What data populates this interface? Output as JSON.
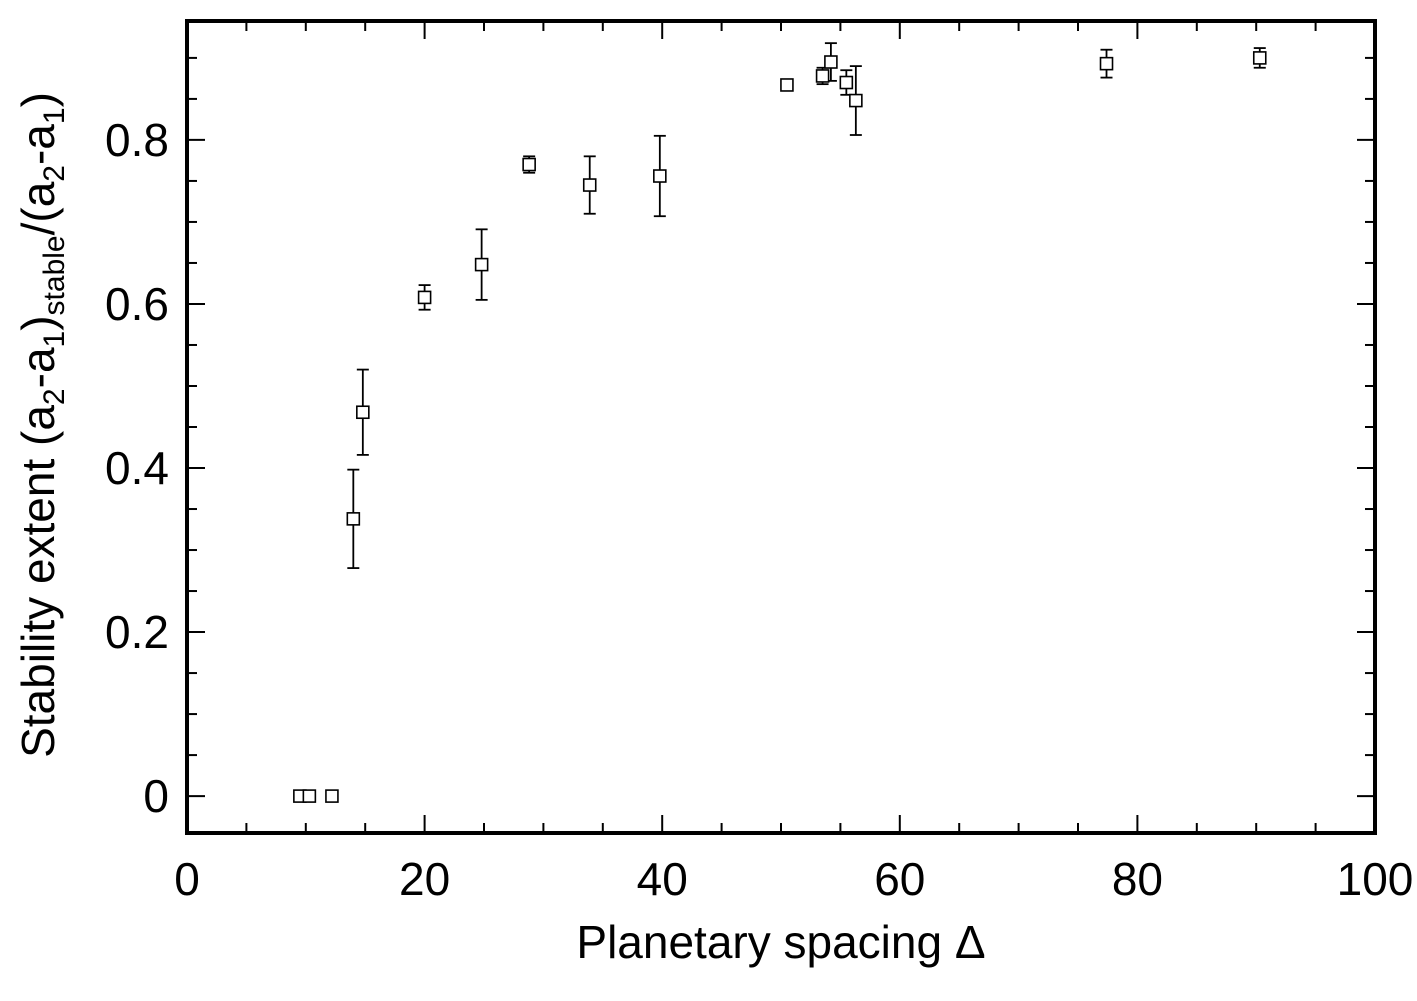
{
  "chart_data": {
    "type": "scatter",
    "xlabel": "Planetary spacing Δ",
    "ylabel": {
      "parts": [
        {
          "text": "Stability extent (a",
          "style": "normal"
        },
        {
          "text": "2",
          "style": "sub"
        },
        {
          "text": "-a",
          "style": "normal"
        },
        {
          "text": "1",
          "style": "sub"
        },
        {
          "text": ")",
          "style": "normal"
        },
        {
          "text": "stable",
          "style": "sub"
        },
        {
          "text": "/(a",
          "style": "normal"
        },
        {
          "text": "2",
          "style": "sub"
        },
        {
          "text": "-a",
          "style": "normal"
        },
        {
          "text": "1",
          "style": "sub"
        },
        {
          "text": ")",
          "style": "normal"
        }
      ]
    },
    "xlim": [
      0,
      100
    ],
    "ylim": [
      -0.045,
      0.945
    ],
    "x_ticks": [
      0,
      20,
      40,
      60,
      80,
      100
    ],
    "x_tick_labels": [
      "0",
      "20",
      "40",
      "60",
      "80",
      "100"
    ],
    "x_minor_step": 5,
    "y_ticks": [
      0,
      0.2,
      0.4,
      0.6,
      0.8
    ],
    "y_tick_labels": [
      "0",
      "0.2",
      "0.4",
      "0.6",
      "0.8"
    ],
    "y_minor_step": 0.05,
    "grid": false,
    "legend": "none",
    "marker": "open-square",
    "series": [
      {
        "points": [
          {
            "x": 9.5,
            "y": 0.0
          },
          {
            "x": 10.3,
            "y": 0.0
          },
          {
            "x": 12.2,
            "y": 0.0
          },
          {
            "x": 14.0,
            "y": 0.338,
            "err_low": 0.278,
            "err_high": 0.398
          },
          {
            "x": 14.8,
            "y": 0.468,
            "err_low": 0.416,
            "err_high": 0.52
          },
          {
            "x": 20.0,
            "y": 0.608,
            "err_low": 0.593,
            "err_high": 0.623
          },
          {
            "x": 24.8,
            "y": 0.648,
            "err_low": 0.605,
            "err_high": 0.691
          },
          {
            "x": 28.8,
            "y": 0.77,
            "err_low": 0.76,
            "err_high": 0.78
          },
          {
            "x": 33.9,
            "y": 0.745,
            "err_low": 0.71,
            "err_high": 0.78
          },
          {
            "x": 39.8,
            "y": 0.756,
            "err_low": 0.707,
            "err_high": 0.805
          },
          {
            "x": 50.5,
            "y": 0.867
          },
          {
            "x": 53.5,
            "y": 0.878,
            "err_low": 0.868,
            "err_high": 0.888
          },
          {
            "x": 54.2,
            "y": 0.895,
            "err_low": 0.872,
            "err_high": 0.918
          },
          {
            "x": 55.5,
            "y": 0.87,
            "err_low": 0.855,
            "err_high": 0.885
          },
          {
            "x": 56.3,
            "y": 0.848,
            "err_low": 0.806,
            "err_high": 0.89
          },
          {
            "x": 77.4,
            "y": 0.893,
            "err_low": 0.876,
            "err_high": 0.91
          },
          {
            "x": 90.3,
            "y": 0.9,
            "err_low": 0.888,
            "err_high": 0.912
          }
        ]
      }
    ]
  }
}
